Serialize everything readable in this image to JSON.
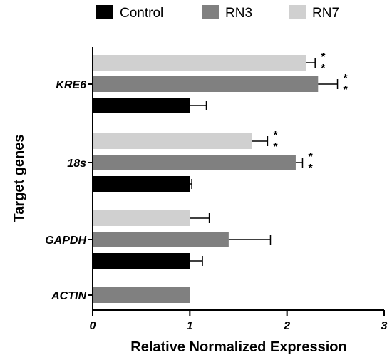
{
  "chart_data": {
    "type": "bar",
    "orientation": "horizontal",
    "title": "",
    "xlabel": "Relative Normalized Expression",
    "ylabel": "Target genes",
    "xlim": [
      0,
      3
    ],
    "x_ticks": [
      "0",
      "1",
      "2",
      "3"
    ],
    "grid": false,
    "legend_position": "top",
    "categories": [
      "KRE6",
      "18s",
      "GAPDH",
      "ACTIN"
    ],
    "series": [
      {
        "name": "Control",
        "color": "#000000",
        "values": [
          1.0,
          1.0,
          1.0,
          null
        ],
        "errors": [
          0.17,
          0.02,
          0.13,
          null
        ],
        "significance": [
          "",
          "",
          "",
          ""
        ]
      },
      {
        "name": "RN3",
        "color": "#808080",
        "values": [
          2.32,
          2.09,
          1.4,
          1.0
        ],
        "errors": [
          0.2,
          0.07,
          0.43,
          null
        ],
        "significance": [
          "**",
          "**",
          "",
          ""
        ]
      },
      {
        "name": "RN7",
        "color": "#d0d0d0",
        "values": [
          2.2,
          1.64,
          1.0,
          null
        ],
        "errors": [
          0.09,
          0.16,
          0.2,
          null
        ],
        "significance": [
          "**",
          "**",
          "",
          ""
        ]
      }
    ]
  }
}
